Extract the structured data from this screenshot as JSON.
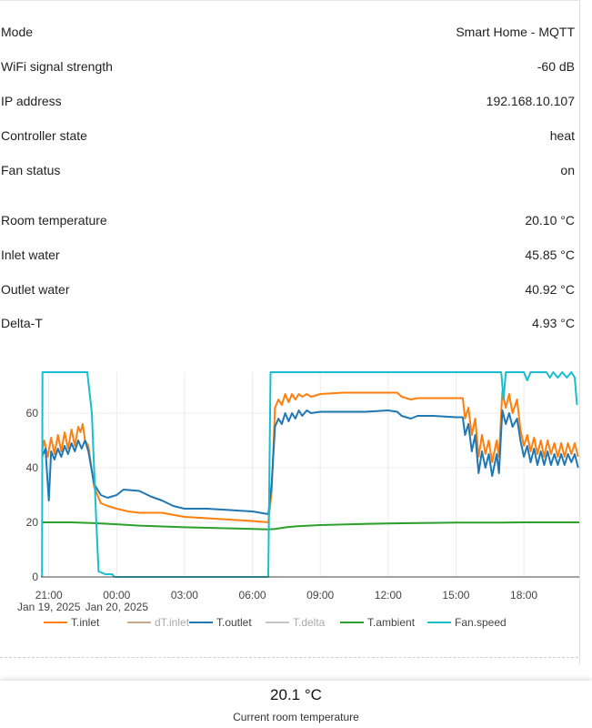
{
  "status": [
    {
      "label": "Mode",
      "value": "Smart Home - MQTT"
    },
    {
      "label": "WiFi signal strength",
      "value": "-60 dB"
    },
    {
      "label": "IP address",
      "value": "192.168.10.107"
    },
    {
      "label": "Controller state",
      "value": "heat"
    },
    {
      "label": "Fan status",
      "value": "on"
    }
  ],
  "temperatures": [
    {
      "label": "Room temperature",
      "value": "20.10 °C"
    },
    {
      "label": "Inlet water",
      "value": "45.85 °C"
    },
    {
      "label": "Outlet water",
      "value": "40.92 °C"
    },
    {
      "label": "Delta-T",
      "value": "4.93 °C"
    }
  ],
  "chart_data": {
    "type": "line",
    "x_ticks": [
      {
        "hour": 21,
        "label": "21:00",
        "sub": "Jan 19, 2025"
      },
      {
        "hour": 24,
        "label": "00:00",
        "sub": "Jan 20, 2025"
      },
      {
        "hour": 27,
        "label": "03:00",
        "sub": ""
      },
      {
        "hour": 30,
        "label": "06:00",
        "sub": ""
      },
      {
        "hour": 33,
        "label": "09:00",
        "sub": ""
      },
      {
        "hour": 36,
        "label": "12:00",
        "sub": ""
      },
      {
        "hour": 39,
        "label": "15:00",
        "sub": ""
      },
      {
        "hour": 42,
        "label": "18:00",
        "sub": ""
      }
    ],
    "xlim": [
      20.65,
      44.45
    ],
    "y_ticks": [
      0,
      20,
      40,
      60
    ],
    "ylim": [
      0,
      75
    ],
    "grid": true,
    "legend_position": "bottom",
    "series": [
      {
        "name": "T.inlet",
        "color": "#ff7f0e",
        "visible": true,
        "points": [
          [
            20.7,
            46
          ],
          [
            20.8,
            50
          ],
          [
            20.95,
            44
          ],
          [
            21.1,
            51
          ],
          [
            21.25,
            45
          ],
          [
            21.4,
            52
          ],
          [
            21.55,
            46
          ],
          [
            21.7,
            53
          ],
          [
            21.85,
            47
          ],
          [
            22.0,
            54
          ],
          [
            22.15,
            48
          ],
          [
            22.3,
            55
          ],
          [
            22.4,
            53
          ],
          [
            22.5,
            56
          ],
          [
            22.6,
            50
          ],
          [
            22.75,
            48
          ],
          [
            23.0,
            33
          ],
          [
            23.3,
            27
          ],
          [
            23.6,
            26
          ],
          [
            24.0,
            25
          ],
          [
            24.5,
            24
          ],
          [
            25.0,
            23.5
          ],
          [
            26.0,
            23.5
          ],
          [
            27.0,
            22
          ],
          [
            28.0,
            21.5
          ],
          [
            29.0,
            21
          ],
          [
            30.0,
            20.5
          ],
          [
            30.7,
            20
          ],
          [
            30.85,
            31
          ],
          [
            31.0,
            62
          ],
          [
            31.15,
            65
          ],
          [
            31.3,
            63
          ],
          [
            31.45,
            67
          ],
          [
            31.6,
            64
          ],
          [
            31.75,
            67
          ],
          [
            31.9,
            65
          ],
          [
            32.05,
            67
          ],
          [
            32.2,
            66
          ],
          [
            32.4,
            67
          ],
          [
            32.6,
            66
          ],
          [
            33.0,
            67
          ],
          [
            34.0,
            67.5
          ],
          [
            35.0,
            67.5
          ],
          [
            36.0,
            67.5
          ],
          [
            36.4,
            67.5
          ],
          [
            36.6,
            66
          ],
          [
            37.0,
            65
          ],
          [
            37.3,
            65.5
          ],
          [
            38.0,
            65.5
          ],
          [
            39.0,
            65.5
          ],
          [
            39.3,
            65.5
          ],
          [
            39.4,
            58
          ],
          [
            39.55,
            62
          ],
          [
            39.7,
            52
          ],
          [
            39.85,
            58
          ],
          [
            40.0,
            44
          ],
          [
            40.15,
            52
          ],
          [
            40.3,
            45
          ],
          [
            40.45,
            50
          ],
          [
            40.6,
            42
          ],
          [
            40.8,
            50
          ],
          [
            40.9,
            44
          ],
          [
            41.05,
            68
          ],
          [
            41.2,
            62
          ],
          [
            41.35,
            67
          ],
          [
            41.5,
            60
          ],
          [
            41.7,
            65
          ],
          [
            41.85,
            54
          ],
          [
            42.0,
            48
          ],
          [
            42.15,
            52
          ],
          [
            42.3,
            46
          ],
          [
            42.45,
            51
          ],
          [
            42.6,
            45
          ],
          [
            42.75,
            50
          ],
          [
            42.9,
            44
          ],
          [
            43.05,
            50
          ],
          [
            43.2,
            45
          ],
          [
            43.35,
            49
          ],
          [
            43.5,
            44
          ],
          [
            43.65,
            49
          ],
          [
            43.8,
            44
          ],
          [
            43.95,
            49
          ],
          [
            44.1,
            45
          ],
          [
            44.25,
            49
          ],
          [
            44.4,
            44
          ]
        ]
      },
      {
        "name": "dT.inlet",
        "color": "#c8a88a",
        "visible": false,
        "points": []
      },
      {
        "name": "T.outlet",
        "color": "#1f77b4",
        "visible": true,
        "points": [
          [
            20.7,
            44
          ],
          [
            20.85,
            47
          ],
          [
            21.0,
            28
          ],
          [
            21.1,
            46
          ],
          [
            21.25,
            43
          ],
          [
            21.4,
            47
          ],
          [
            21.55,
            44
          ],
          [
            21.7,
            48
          ],
          [
            21.85,
            45
          ],
          [
            22.0,
            49
          ],
          [
            22.15,
            46
          ],
          [
            22.3,
            50
          ],
          [
            22.45,
            47
          ],
          [
            22.6,
            50
          ],
          [
            22.75,
            46
          ],
          [
            23.0,
            34
          ],
          [
            23.3,
            30
          ],
          [
            23.6,
            29
          ],
          [
            24.0,
            30
          ],
          [
            24.3,
            32
          ],
          [
            25.0,
            31.5
          ],
          [
            25.5,
            29.5
          ],
          [
            26.0,
            28
          ],
          [
            26.5,
            26
          ],
          [
            27.0,
            25
          ],
          [
            28.0,
            25
          ],
          [
            29.0,
            24.5
          ],
          [
            30.0,
            24
          ],
          [
            30.7,
            23
          ],
          [
            30.85,
            34
          ],
          [
            31.0,
            55
          ],
          [
            31.15,
            58
          ],
          [
            31.3,
            56
          ],
          [
            31.45,
            60
          ],
          [
            31.6,
            57
          ],
          [
            31.75,
            60
          ],
          [
            31.9,
            58
          ],
          [
            32.05,
            61
          ],
          [
            32.2,
            59
          ],
          [
            32.4,
            61
          ],
          [
            32.6,
            60
          ],
          [
            33.0,
            60.5
          ],
          [
            34.0,
            60.5
          ],
          [
            35.0,
            60.5
          ],
          [
            36.0,
            61
          ],
          [
            36.4,
            60.5
          ],
          [
            36.6,
            59
          ],
          [
            37.0,
            58
          ],
          [
            37.3,
            59
          ],
          [
            38.0,
            59
          ],
          [
            39.0,
            58.5
          ],
          [
            39.3,
            58.5
          ],
          [
            39.4,
            52
          ],
          [
            39.55,
            56
          ],
          [
            39.7,
            46
          ],
          [
            39.85,
            52
          ],
          [
            40.0,
            38
          ],
          [
            40.15,
            46
          ],
          [
            40.3,
            40
          ],
          [
            40.45,
            45
          ],
          [
            40.6,
            37
          ],
          [
            40.8,
            45
          ],
          [
            40.9,
            38
          ],
          [
            41.05,
            61
          ],
          [
            41.2,
            56
          ],
          [
            41.35,
            60
          ],
          [
            41.5,
            55
          ],
          [
            41.7,
            58
          ],
          [
            41.85,
            50
          ],
          [
            42.0,
            44
          ],
          [
            42.15,
            48
          ],
          [
            42.3,
            42
          ],
          [
            42.45,
            47
          ],
          [
            42.6,
            41
          ],
          [
            42.75,
            46
          ],
          [
            42.9,
            41
          ],
          [
            43.05,
            46
          ],
          [
            43.2,
            41
          ],
          [
            43.35,
            45
          ],
          [
            43.5,
            41
          ],
          [
            43.65,
            45
          ],
          [
            43.8,
            41
          ],
          [
            43.95,
            45
          ],
          [
            44.1,
            42
          ],
          [
            44.25,
            45
          ],
          [
            44.4,
            40
          ]
        ]
      },
      {
        "name": "T.delta",
        "color": "#c7c7c7",
        "visible": false,
        "points": []
      },
      {
        "name": "T.ambient",
        "color": "#2ca02c",
        "visible": true,
        "points": [
          [
            20.7,
            20
          ],
          [
            22.0,
            20
          ],
          [
            23.0,
            19.7
          ],
          [
            24.0,
            19.3
          ],
          [
            25.0,
            18.8
          ],
          [
            26.0,
            18.5
          ],
          [
            27.0,
            18.2
          ],
          [
            28.0,
            18
          ],
          [
            29.0,
            17.8
          ],
          [
            30.0,
            17.6
          ],
          [
            30.7,
            17.4
          ],
          [
            31.0,
            17.6
          ],
          [
            31.5,
            18.2
          ],
          [
            32.0,
            18.6
          ],
          [
            33.0,
            19
          ],
          [
            34.0,
            19.2
          ],
          [
            35.0,
            19.4
          ],
          [
            36.0,
            19.6
          ],
          [
            37.0,
            19.7
          ],
          [
            38.0,
            19.8
          ],
          [
            39.0,
            19.9
          ],
          [
            40.0,
            19.9
          ],
          [
            41.0,
            19.9
          ],
          [
            42.0,
            20
          ],
          [
            43.0,
            20
          ],
          [
            44.45,
            20
          ]
        ]
      },
      {
        "name": "Fan.speed",
        "color": "#17becf",
        "visible": true,
        "points": [
          [
            20.7,
            0
          ],
          [
            20.72,
            75
          ],
          [
            22.7,
            75
          ],
          [
            22.9,
            60
          ],
          [
            23.1,
            20
          ],
          [
            23.2,
            2
          ],
          [
            23.5,
            1
          ],
          [
            23.8,
            1
          ],
          [
            23.9,
            0
          ],
          [
            30.7,
            0
          ],
          [
            30.8,
            75
          ],
          [
            41.0,
            75
          ],
          [
            41.1,
            65
          ],
          [
            41.2,
            75
          ],
          [
            42.0,
            75
          ],
          [
            42.15,
            72
          ],
          [
            42.3,
            75
          ],
          [
            43.0,
            75
          ],
          [
            43.15,
            73
          ],
          [
            43.3,
            75
          ],
          [
            43.5,
            73
          ],
          [
            43.7,
            75
          ],
          [
            43.9,
            73
          ],
          [
            44.1,
            75
          ],
          [
            44.25,
            73
          ],
          [
            44.35,
            63
          ]
        ]
      }
    ]
  },
  "current": {
    "value": "20.1 °C",
    "label": "Current room temperature"
  }
}
